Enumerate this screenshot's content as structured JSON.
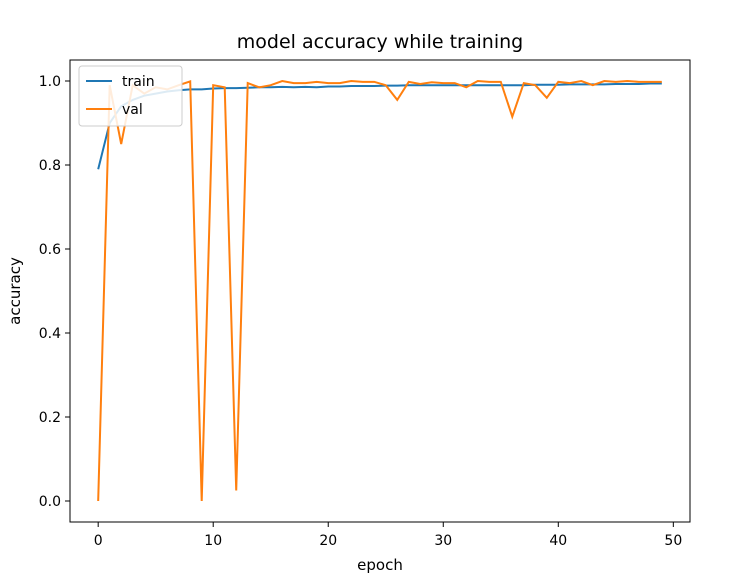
{
  "chart_data": {
    "type": "line",
    "title": "model accuracy while training",
    "xlabel": "epoch",
    "ylabel": "accuracy",
    "xlim": [
      -2.45,
      51.45
    ],
    "ylim": [
      -0.05,
      1.05
    ],
    "xticks": [
      0,
      10,
      20,
      30,
      40,
      50
    ],
    "yticks": [
      0.0,
      0.2,
      0.4,
      0.6,
      0.8,
      1.0
    ],
    "xtick_labels": [
      "0",
      "10",
      "20",
      "30",
      "40",
      "50"
    ],
    "ytick_labels": [
      "0.0",
      "0.2",
      "0.4",
      "0.6",
      "0.8",
      "1.0"
    ],
    "grid": false,
    "legend_position": "top-left",
    "x": [
      0,
      1,
      2,
      3,
      4,
      5,
      6,
      7,
      8,
      9,
      10,
      11,
      12,
      13,
      14,
      15,
      16,
      17,
      18,
      19,
      20,
      21,
      22,
      23,
      24,
      25,
      26,
      27,
      28,
      29,
      30,
      31,
      32,
      33,
      34,
      35,
      36,
      37,
      38,
      39,
      40,
      41,
      42,
      43,
      44,
      45,
      46,
      47,
      48,
      49
    ],
    "series": [
      {
        "name": "train",
        "color": "#1f77b4",
        "values": [
          0.79,
          0.9,
          0.94,
          0.955,
          0.965,
          0.97,
          0.975,
          0.978,
          0.98,
          0.98,
          0.982,
          0.983,
          0.983,
          0.984,
          0.985,
          0.985,
          0.986,
          0.985,
          0.986,
          0.985,
          0.987,
          0.987,
          0.988,
          0.988,
          0.988,
          0.989,
          0.989,
          0.99,
          0.99,
          0.99,
          0.99,
          0.99,
          0.99,
          0.99,
          0.99,
          0.99,
          0.99,
          0.99,
          0.991,
          0.991,
          0.991,
          0.992,
          0.992,
          0.992,
          0.992,
          0.993,
          0.993,
          0.993,
          0.994,
          0.994
        ]
      },
      {
        "name": "val",
        "color": "#ff7f0e",
        "values": [
          0.0,
          0.99,
          0.85,
          0.99,
          0.97,
          0.985,
          0.98,
          0.99,
          0.999,
          0.0,
          0.99,
          0.985,
          0.025,
          0.995,
          0.985,
          0.99,
          1.0,
          0.995,
          0.995,
          0.998,
          0.995,
          0.995,
          1.0,
          0.998,
          0.998,
          0.99,
          0.955,
          0.998,
          0.993,
          0.997,
          0.995,
          0.995,
          0.985,
          1.0,
          0.998,
          0.998,
          0.915,
          0.995,
          0.99,
          0.96,
          0.998,
          0.995,
          1.0,
          0.99,
          1.0,
          0.998,
          1.0,
          0.998,
          0.998,
          0.998
        ]
      }
    ]
  }
}
